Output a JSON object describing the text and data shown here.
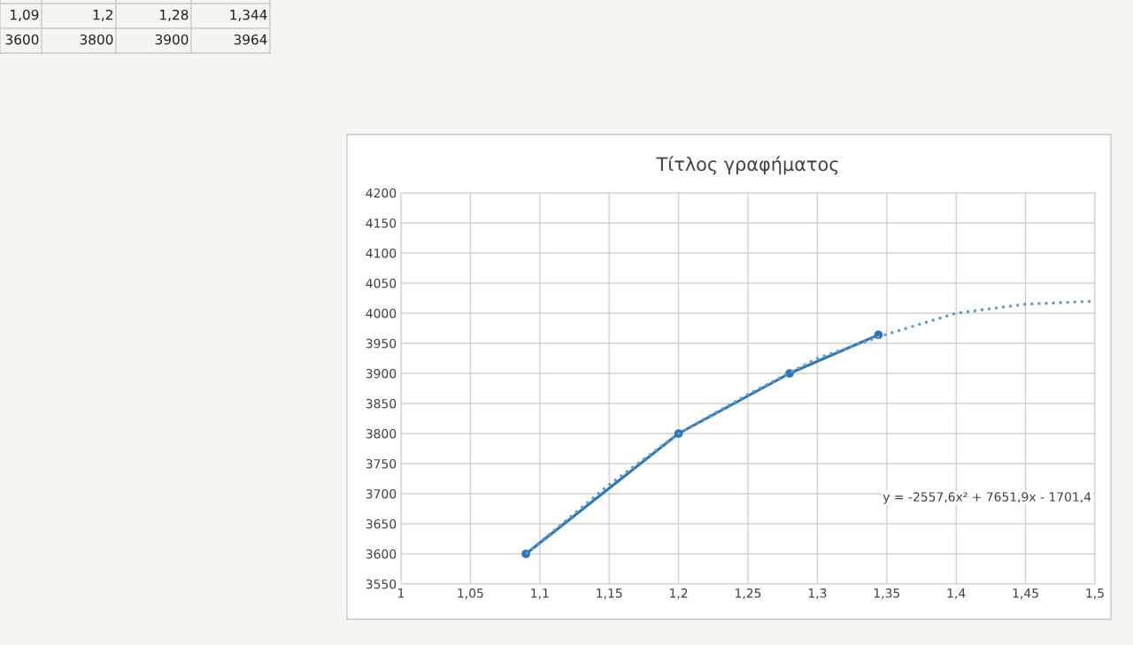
{
  "chart_data": {
    "type": "line",
    "title": "Τίτλος γραφήματος",
    "xlim": [
      1,
      1.5
    ],
    "xticks": [
      1,
      {
        "value": 1.05,
        "label": "1,05"
      },
      {
        "value": 1.1,
        "label": "1,1"
      },
      {
        "value": 1.15,
        "label": "1,15"
      },
      {
        "value": 1.2,
        "label": "1,2"
      },
      {
        "value": 1.25,
        "label": "1,25"
      },
      {
        "value": 1.3,
        "label": "1,3"
      },
      {
        "value": 1.35,
        "label": "1,35"
      },
      {
        "value": 1.4,
        "label": "1,4"
      },
      {
        "value": 1.45,
        "label": "1,45"
      },
      {
        "value": 1.5,
        "label": "1,5"
      }
    ],
    "ylim": [
      3550,
      4200
    ],
    "yticks": [
      3550,
      3600,
      3650,
      3700,
      3750,
      3800,
      3850,
      3900,
      3950,
      4000,
      4050,
      4100,
      4150,
      4200
    ],
    "grid": true,
    "legend": false,
    "series": [
      {
        "color": "#2e75b6",
        "marker": "circle",
        "line_style": "solid",
        "x": [
          1.09,
          1.2,
          1.28,
          1.344
        ],
        "values": [
          3600,
          3800,
          3900,
          3964
        ]
      },
      {
        "color": "#5b9bd5",
        "marker": "none",
        "line_style": "dotted",
        "x": [
          1.09,
          1.15,
          1.2,
          1.25,
          1.3,
          1.35,
          1.4,
          1.45,
          1.5
        ],
        "values": [
          3600,
          3715,
          3800,
          3865,
          3925,
          3965,
          4000,
          4015,
          4020
        ]
      }
    ],
    "annotations": [
      "y = -2557,6x² + 7651,9x - 1701,4",
      "1,09",
      "1,2",
      "1,28",
      "1,344",
      "3600",
      "3800",
      "3900",
      "3964"
    ]
  }
}
